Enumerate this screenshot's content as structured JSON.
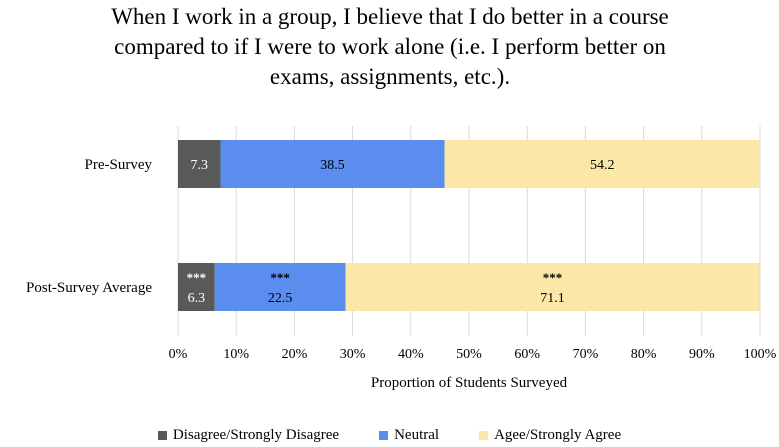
{
  "chart_data": {
    "type": "bar",
    "orientation": "horizontal",
    "stacked": true,
    "title_lines": [
      "When I work in a group, I believe that I do better in a course",
      "compared to if I were to work alone (i.e. I perform better on",
      "exams, assignments, etc.)."
    ],
    "xlabel": "Proportion of Students Surveyed",
    "xlim": [
      0,
      100
    ],
    "x_ticks": [
      "0%",
      "10%",
      "20%",
      "30%",
      "40%",
      "50%",
      "60%",
      "70%",
      "80%",
      "90%",
      "100%"
    ],
    "categories": [
      "Pre-Survey",
      "Post-Survey Average"
    ],
    "series": [
      {
        "name": "Disagree/Strongly Disagree",
        "color": "#595959",
        "values": [
          7.3,
          6.3
        ],
        "labels": [
          "7.3",
          "6.3"
        ],
        "label_color": "#ffffff"
      },
      {
        "name": "Neutral",
        "color": "#5b8def",
        "values": [
          38.5,
          22.5
        ],
        "labels": [
          "38.5",
          "22.5"
        ],
        "label_color": "#000000"
      },
      {
        "name": "Agee/Strongly Agree",
        "color": "#fbe7a6",
        "values": [
          54.2,
          71.1
        ],
        "labels": [
          "54.2",
          "71.1"
        ],
        "label_color": "#000000"
      }
    ],
    "significance": {
      "category": "Post-Survey Average",
      "marker": "***"
    },
    "grid": true,
    "legend_position": "bottom"
  }
}
